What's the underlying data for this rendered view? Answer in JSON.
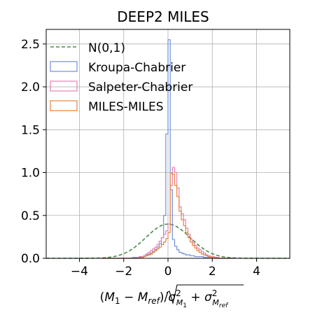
{
  "chart_data": {
    "type": "histogram",
    "title": "DEEP2 MILES",
    "xlabel": "(M_1 − M_ref)/√(σ²_M1 + σ²_Mref)",
    "xlabel_parts": {
      "left": "(",
      "m1": "M",
      "m1_sub": "1",
      "minus": " − ",
      "mref": "M",
      "mref_sub": "ref",
      "close_div": ")/",
      "sigma1": "σ",
      "sigma1_sup": "2",
      "sigma1_sub": "M",
      "sigma1_subsub": "1",
      "plus": " + ",
      "sigma2": "σ",
      "sigma2_sup": "2",
      "sigma2_sub": "M",
      "sigma2_subsub": "ref"
    },
    "ylabel": "",
    "xlim": [
      -5.5,
      5.5
    ],
    "ylim": [
      0.0,
      2.67
    ],
    "xticks": [
      -4,
      -2,
      0,
      2,
      4
    ],
    "xtick_labels": [
      "−4",
      "−2",
      "0",
      "2",
      "4"
    ],
    "yticks": [
      0.0,
      0.5,
      1.0,
      1.5,
      2.0,
      2.5
    ],
    "ytick_labels": [
      "0.0",
      "0.5",
      "1.0",
      "1.5",
      "2.0",
      "2.5"
    ],
    "grid": true,
    "legend_position": "top-left",
    "bin_width": 0.1,
    "bin_start": -3.0,
    "series": [
      {
        "name": "N(0,1)",
        "kind": "line",
        "style": "dashed",
        "color": "#4c8a4c",
        "formula": "standard-normal"
      },
      {
        "name": "Kroupa-Chabrier",
        "kind": "step",
        "color": "#6f8fdc",
        "values": [
          0.0,
          0.0,
          0.0,
          0.0,
          0.0,
          0.0,
          0.0,
          0.0,
          0.0,
          0.0,
          0.0,
          0.0,
          0.0,
          0.0,
          0.01,
          0.01,
          0.01,
          0.02,
          0.02,
          0.03,
          0.04,
          0.05,
          0.06,
          0.08,
          0.1,
          0.13,
          0.17,
          0.24,
          0.5,
          1.45,
          2.55,
          0.8,
          0.22,
          0.14,
          0.1,
          0.07,
          0.06,
          0.05,
          0.04,
          0.04,
          0.03,
          0.03,
          0.02,
          0.02,
          0.02,
          0.02,
          0.01,
          0.01,
          0.01,
          0.01,
          0.0,
          0.0,
          0.0,
          0.0,
          0.0,
          0.0,
          0.0,
          0.0,
          0.0,
          0.0
        ]
      },
      {
        "name": "Salpeter-Chabrier",
        "kind": "step",
        "color": "#e87fb3",
        "values": [
          0.0,
          0.0,
          0.0,
          0.0,
          0.0,
          0.0,
          0.0,
          0.0,
          0.0,
          0.0,
          0.0,
          0.0,
          0.0,
          0.0,
          0.0,
          0.0,
          0.01,
          0.01,
          0.02,
          0.03,
          0.05,
          0.07,
          0.09,
          0.11,
          0.13,
          0.16,
          0.2,
          0.24,
          0.28,
          0.32,
          0.4,
          0.85,
          1.06,
          1.0,
          0.82,
          0.6,
          0.52,
          0.45,
          0.35,
          0.28,
          0.22,
          0.18,
          0.15,
          0.12,
          0.1,
          0.08,
          0.06,
          0.04,
          0.03,
          0.02,
          0.02,
          0.01,
          0.01,
          0.0,
          0.0,
          0.0,
          0.0,
          0.0,
          0.0,
          0.0
        ]
      },
      {
        "name": "MILES-MILES",
        "kind": "step",
        "color": "#e8823a",
        "values": [
          0.0,
          0.0,
          0.0,
          0.0,
          0.0,
          0.0,
          0.0,
          0.0,
          0.0,
          0.0,
          0.0,
          0.0,
          0.0,
          0.0,
          0.0,
          0.0,
          0.0,
          0.01,
          0.01,
          0.02,
          0.03,
          0.04,
          0.05,
          0.07,
          0.09,
          0.11,
          0.13,
          0.16,
          0.19,
          0.23,
          0.3,
          0.99,
          0.98,
          0.85,
          0.72,
          0.55,
          0.45,
          0.38,
          0.3,
          0.24,
          0.19,
          0.15,
          0.12,
          0.09,
          0.07,
          0.05,
          0.04,
          0.03,
          0.02,
          0.01,
          0.01,
          0.01,
          0.0,
          0.0,
          0.0,
          0.0,
          0.0,
          0.0,
          0.0,
          0.0
        ]
      }
    ]
  }
}
